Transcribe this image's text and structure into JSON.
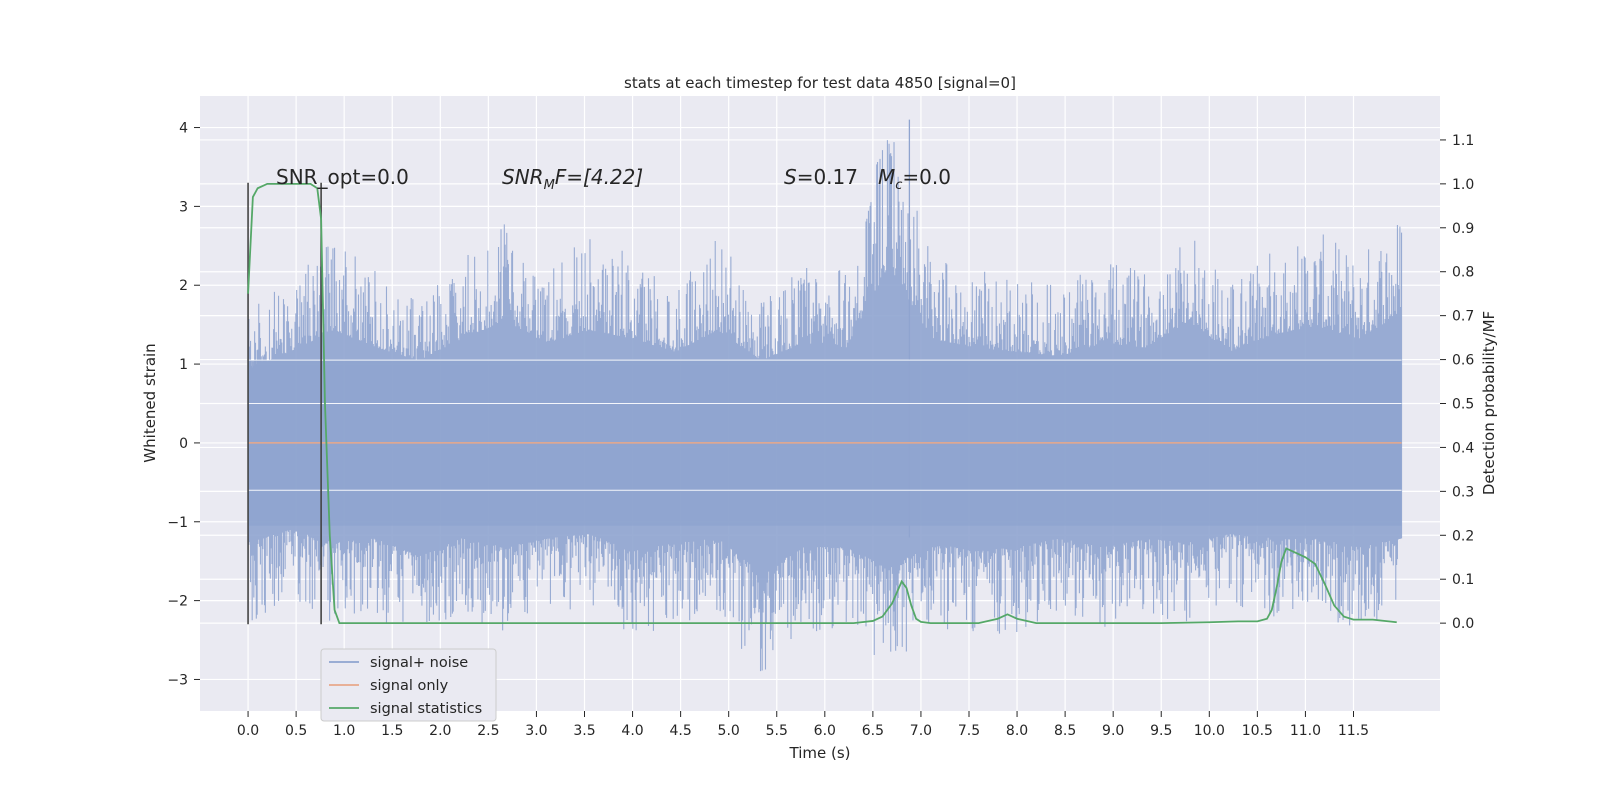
{
  "chart_data": {
    "type": "line",
    "title": "stats at each timestep for test data 4850 [signal=0]",
    "xlabel": "Time (s)",
    "ylabel": "Whitened strain",
    "ylabel_right": "Detection probability/MF",
    "xlim": [
      -0.5,
      12.4
    ],
    "ylim": [
      -3.4,
      4.4
    ],
    "ylim_right": [
      -0.2,
      1.2
    ],
    "x_ticks": [
      "0.0",
      "0.5",
      "1.0",
      "1.5",
      "2.0",
      "2.5",
      "3.0",
      "3.5",
      "4.0",
      "4.5",
      "5.0",
      "5.5",
      "6.0",
      "6.5",
      "7.0",
      "7.5",
      "8.0",
      "8.5",
      "9.0",
      "9.5",
      "10.0",
      "10.5",
      "11.0",
      "11.5"
    ],
    "y_ticks": [
      "−3",
      "−2",
      "−1",
      "0",
      "1",
      "2",
      "3",
      "4"
    ],
    "y_ticks_right": [
      "0.0",
      "0.1",
      "0.2",
      "0.3",
      "0.4",
      "0.5",
      "0.6",
      "0.7",
      "0.8",
      "0.9",
      "1.0",
      "1.1"
    ],
    "grid": true,
    "legend": {
      "position": "lower-left",
      "entries": [
        "signal+ noise",
        "signal only",
        "signal statistics"
      ]
    },
    "annotations": {
      "snr_opt": "SNR_opt=0.0",
      "snr_mf_main": "SNR",
      "snr_mf_sub": "M",
      "snr_mf_rest": "F=[4.22]",
      "s_main": "S",
      "s_rest": "=0.17",
      "mc_main": "M",
      "mc_sub": "c",
      "mc_rest": "=0.0"
    },
    "vertical_markers": [
      0.0,
      0.76
    ],
    "series": [
      {
        "name": "signal+ noise",
        "color": "#8fa4cf",
        "x_range": [
          0.0,
          12.0
        ],
        "envelope_upper": [
          1.7,
          2.1,
          2.6,
          2.2,
          1.9,
          2.4,
          2.8,
          2.3,
          2.6,
          2.4,
          2.1,
          2.6,
          1.9,
          2.3,
          2.2,
          4.1,
          2.4,
          2.2,
          2.1,
          2.0,
          2.3,
          2.2,
          2.8,
          2.1,
          2.5,
          2.7,
          2.4,
          3.0
        ],
        "envelope_lower": [
          -2.3,
          -2.0,
          -2.3,
          -2.2,
          -2.6,
          -2.2,
          -2.4,
          -2.2,
          -2.1,
          -2.5,
          -2.3,
          -2.2,
          -3.0,
          -2.4,
          -2.4,
          -2.9,
          -2.3,
          -2.5,
          -2.4,
          -2.2,
          -2.4,
          -2.2,
          -2.3,
          -2.1,
          -2.2,
          -2.2,
          -2.4,
          -2.2
        ]
      },
      {
        "name": "signal only",
        "color": "#e8a88a",
        "x": [
          0.0,
          12.0
        ],
        "y": [
          0.0,
          0.0
        ]
      },
      {
        "name": "signal statistics",
        "color": "#55a868",
        "axis": "right",
        "x": [
          0.0,
          0.05,
          0.1,
          0.2,
          0.3,
          0.5,
          0.65,
          0.72,
          0.76,
          0.8,
          0.85,
          0.9,
          0.95,
          1.0,
          2.0,
          4.0,
          5.0,
          5.5,
          6.0,
          6.3,
          6.5,
          6.6,
          6.7,
          6.8,
          6.85,
          6.9,
          6.95,
          7.0,
          7.1,
          7.3,
          7.6,
          7.8,
          7.9,
          8.0,
          8.2,
          8.5,
          9.0,
          9.5,
          10.0,
          10.3,
          10.5,
          10.6,
          10.65,
          10.7,
          10.75,
          10.8,
          10.9,
          11.0,
          11.1,
          11.2,
          11.3,
          11.4,
          11.5,
          11.7,
          11.95
        ],
        "y": [
          0.75,
          0.97,
          0.99,
          1.0,
          1.0,
          1.0,
          1.0,
          0.99,
          0.92,
          0.5,
          0.2,
          0.03,
          0.0,
          0.0,
          0.0,
          0.0,
          0.0,
          0.0,
          0.0,
          0.0,
          0.005,
          0.015,
          0.045,
          0.095,
          0.08,
          0.04,
          0.01,
          0.003,
          0.0,
          0.0,
          0.0,
          0.01,
          0.02,
          0.01,
          0.0,
          0.0,
          0.0,
          0.0,
          0.002,
          0.004,
          0.004,
          0.01,
          0.03,
          0.08,
          0.14,
          0.17,
          0.16,
          0.15,
          0.135,
          0.09,
          0.04,
          0.015,
          0.008,
          0.008,
          0.002
        ]
      }
    ]
  }
}
